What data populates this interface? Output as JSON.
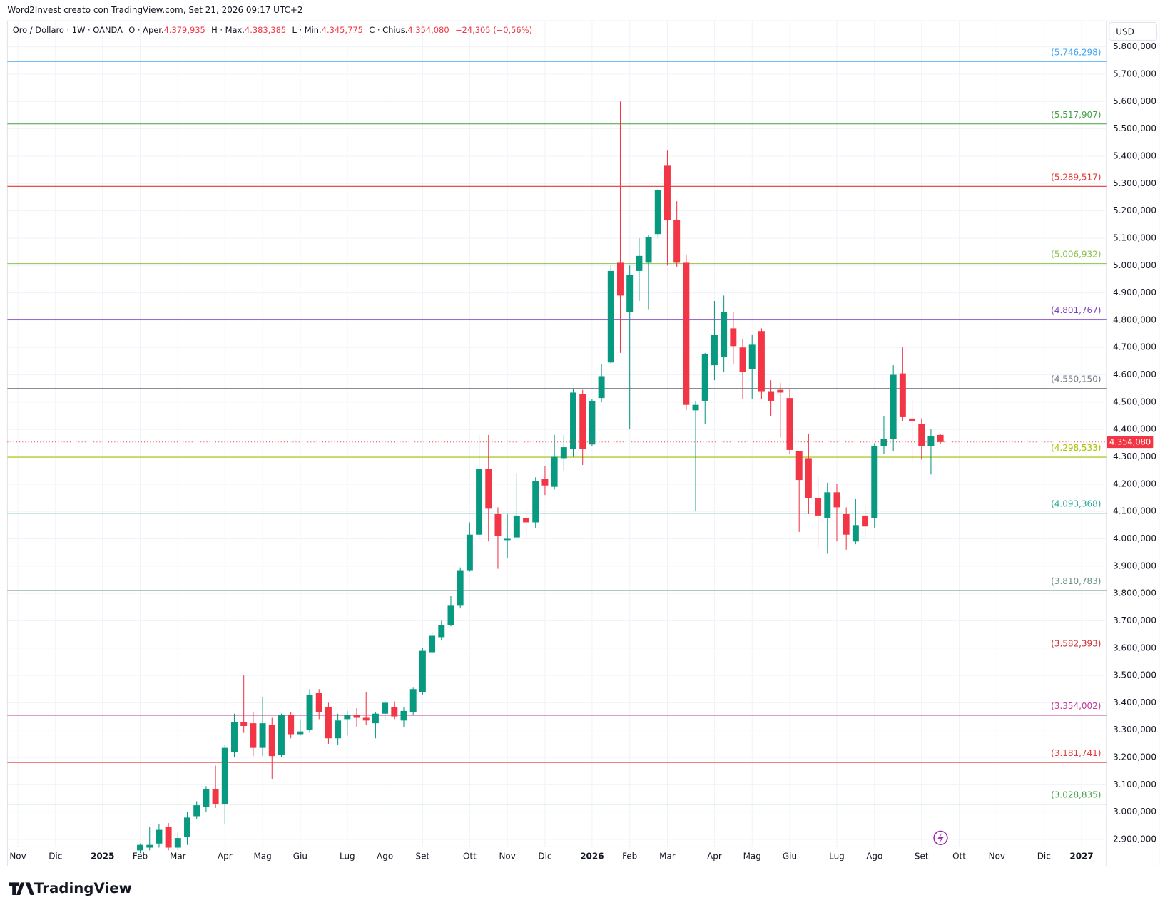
{
  "chart_data": {
    "type": "candlestick",
    "header": "Word2Invest creato con TradingView.com, Set 21, 2026 09:17 UTC+2",
    "symbol": "Oro / Dollaro · 1W · OANDA",
    "ohlc": [
      {
        "label": "O · Aper.",
        "value": "4.379,935"
      },
      {
        "label": "H · Max.",
        "value": "4.383,385"
      },
      {
        "label": "L · Min.",
        "value": "4.345,775"
      },
      {
        "label": "C · Chius.",
        "value": "4.354,080"
      }
    ],
    "change": "−24,305 (−0,56%)",
    "currency": "USD",
    "brand": "TradingView",
    "up_color": "#089981",
    "down_color": "#f23645",
    "categories": [
      "Nov",
      null,
      null,
      null,
      "Dic",
      null,
      null,
      null,
      null,
      "2025",
      null,
      null,
      null,
      "Feb",
      null,
      null,
      null,
      "Mar",
      null,
      null,
      null,
      null,
      "Apr",
      null,
      null,
      null,
      "Mag",
      null,
      null,
      null,
      "Giu",
      null,
      null,
      null,
      null,
      "Lug",
      null,
      null,
      null,
      "Ago",
      null,
      null,
      null,
      "Set",
      null,
      null,
      null,
      null,
      "Ott",
      null,
      null,
      null,
      "Nov",
      null,
      null,
      null,
      "Dic",
      null,
      null,
      null,
      null,
      "2026",
      null,
      null,
      null,
      "Feb",
      null,
      null,
      null,
      "Mar",
      null,
      null,
      null,
      null,
      "Apr",
      null,
      null,
      null,
      "Mag",
      null,
      null,
      null,
      "Giu",
      null,
      null,
      null,
      null,
      "Lug",
      null,
      null,
      null,
      "Ago",
      null,
      null,
      null,
      null,
      "Set",
      null,
      null,
      null,
      "Ott",
      null,
      null,
      null,
      "Nov",
      null,
      null,
      null,
      null,
      "Dic",
      null,
      null,
      null,
      "2027"
    ],
    "open": [
      null,
      null,
      null,
      null,
      null,
      null,
      null,
      null,
      null,
      null,
      null,
      null,
      null,
      2860,
      2870,
      2885,
      2945,
      2870,
      2910,
      2985,
      3020,
      3085,
      3030,
      3220,
      3330,
      3325,
      3235,
      3320,
      3210,
      3355,
      3285,
      3300,
      3435,
      3385,
      3270,
      3340,
      3355,
      3345,
      3325,
      3360,
      3385,
      3335,
      3365,
      3440,
      3585,
      3640,
      3685,
      3755,
      3885,
      4015,
      4255,
      4090,
      3995,
      4005,
      4075,
      4060,
      4220,
      4190,
      4295,
      4330,
      4530,
      4345,
      4515,
      4645,
      5010,
      4830,
      4980,
      5010,
      5115,
      5365,
      5165,
      5010,
      4470,
      4505,
      4635,
      4665,
      4770,
      4700,
      4620,
      4760,
      4540,
      4545,
      4515,
      4320,
      4295,
      4150,
      4075,
      4170,
      4090,
      3990,
      4085,
      4075,
      4340,
      4365,
      4605,
      4440,
      4420,
      4340,
      4379.935,
      null,
      null,
      null,
      null,
      null,
      null,
      null,
      null,
      null,
      null,
      null,
      null,
      null,
      null,
      null
    ],
    "high": [
      null,
      null,
      null,
      null,
      null,
      null,
      null,
      null,
      null,
      null,
      null,
      null,
      null,
      2885,
      2945,
      2955,
      2960,
      2925,
      3000,
      3040,
      3095,
      3170,
      3245,
      3360,
      3500,
      3365,
      3420,
      3345,
      3360,
      3365,
      3340,
      3450,
      3450,
      3400,
      3360,
      3370,
      3380,
      3440,
      3365,
      3410,
      3405,
      3385,
      3455,
      3600,
      3660,
      3700,
      3790,
      3895,
      4060,
      4380,
      4380,
      4115,
      4090,
      4240,
      4110,
      4225,
      4265,
      4380,
      4380,
      4550,
      4545,
      4510,
      4640,
      5000,
      5600,
      5000,
      5100,
      5110,
      5280,
      5420,
      5235,
      5040,
      4505,
      4680,
      4870,
      4890,
      4830,
      4730,
      4745,
      4770,
      4580,
      4570,
      4550,
      4320,
      4385,
      4225,
      4205,
      4200,
      4115,
      4145,
      4120,
      4350,
      4450,
      4635,
      4700,
      4510,
      4440,
      4400,
      4383.385,
      null,
      null,
      null,
      null,
      null,
      null,
      null,
      null,
      null,
      null,
      null,
      null,
      null,
      null,
      null
    ],
    "low": [
      null,
      null,
      null,
      null,
      null,
      null,
      null,
      null,
      null,
      null,
      null,
      null,
      null,
      2850,
      2860,
      2870,
      2860,
      2860,
      2880,
      2975,
      3000,
      3015,
      2955,
      3200,
      3290,
      3205,
      3205,
      3120,
      3200,
      3270,
      3280,
      3290,
      3340,
      3250,
      3245,
      3280,
      3310,
      3320,
      3270,
      3340,
      3340,
      3310,
      3355,
      3430,
      3580,
      3630,
      3680,
      3745,
      3880,
      4000,
      3990,
      3890,
      3930,
      4000,
      4000,
      4040,
      4160,
      4180,
      4250,
      4300,
      4270,
      4340,
      4500,
      4640,
      4680,
      4400,
      4870,
      4840,
      5100,
      5000,
      4995,
      4470,
      4100,
      4420,
      4580,
      4610,
      4640,
      4510,
      4510,
      4510,
      4450,
      4370,
      4310,
      4025,
      4090,
      3965,
      3945,
      3990,
      3960,
      3980,
      4000,
      4040,
      4310,
      4320,
      4430,
      4280,
      4290,
      4235,
      4345.775,
      null,
      null,
      null,
      null,
      null,
      null,
      null,
      null,
      null,
      null,
      null,
      null,
      null,
      null,
      null
    ],
    "close": [
      null,
      null,
      null,
      null,
      null,
      null,
      null,
      null,
      null,
      null,
      null,
      null,
      null,
      2880,
      2880,
      2935,
      2870,
      2905,
      2980,
      3025,
      3085,
      3030,
      3235,
      3330,
      3315,
      3235,
      3325,
      3205,
      3355,
      3285,
      3295,
      3430,
      3365,
      3270,
      3335,
      3355,
      3345,
      3335,
      3360,
      3400,
      3350,
      3370,
      3450,
      3590,
      3645,
      3685,
      3755,
      3885,
      4015,
      4255,
      4110,
      4010,
      4000,
      4085,
      4060,
      4210,
      4195,
      4300,
      4335,
      4535,
      4330,
      4505,
      4595,
      4980,
      4890,
      4965,
      5035,
      5105,
      5275,
      5165,
      5010,
      4490,
      4490,
      4675,
      4745,
      4830,
      4705,
      4610,
      4710,
      4540,
      4505,
      4535,
      4325,
      4215,
      4150,
      4085,
      4170,
      4115,
      4015,
      4050,
      4045,
      4340,
      4365,
      4600,
      4445,
      4430,
      4340,
      4375,
      4354.08,
      null,
      null,
      null,
      null,
      null,
      null,
      null,
      null,
      null,
      null,
      null,
      null,
      null,
      null,
      null
    ],
    "ylim": [
      2873,
      5895
    ],
    "yticks": [
      {
        "value": 2900,
        "label": "2.900,000"
      },
      {
        "value": 3000,
        "label": "3.000,000"
      },
      {
        "value": 3100,
        "label": "3.100,000"
      },
      {
        "value": 3200,
        "label": "3.200,000"
      },
      {
        "value": 3300,
        "label": "3.300,000"
      },
      {
        "value": 3400,
        "label": "3.400,000"
      },
      {
        "value": 3500,
        "label": "3.500,000"
      },
      {
        "value": 3600,
        "label": "3.600,000"
      },
      {
        "value": 3700,
        "label": "3.700,000"
      },
      {
        "value": 3800,
        "label": "3.800,000"
      },
      {
        "value": 3900,
        "label": "3.900,000"
      },
      {
        "value": 4000,
        "label": "4.000,000"
      },
      {
        "value": 4100,
        "label": "4.100,000"
      },
      {
        "value": 4200,
        "label": "4.200,000"
      },
      {
        "value": 4300,
        "label": "4.300,000"
      },
      {
        "value": 4400,
        "label": "4.400,000"
      },
      {
        "value": 4500,
        "label": "4.500,000"
      },
      {
        "value": 4600,
        "label": "4.600,000"
      },
      {
        "value": 4700,
        "label": "4.700,000"
      },
      {
        "value": 4800,
        "label": "4.800,000"
      },
      {
        "value": 4900,
        "label": "4.900,000"
      },
      {
        "value": 5000,
        "label": "5.000,000"
      },
      {
        "value": 5100,
        "label": "5.100,000"
      },
      {
        "value": 5200,
        "label": "5.200,000"
      },
      {
        "value": 5300,
        "label": "5.300,000"
      },
      {
        "value": 5400,
        "label": "5.400,000"
      },
      {
        "value": 5500,
        "label": "5.500,000"
      },
      {
        "value": 5600,
        "label": "5.600,000"
      },
      {
        "value": 5700,
        "label": "5.700,000"
      },
      {
        "value": 5800,
        "label": "5.800,000"
      }
    ],
    "grid": true,
    "levels": [
      {
        "value": 5746.298,
        "label": "(5.746,298)",
        "color": "#42a5f5"
      },
      {
        "value": 5517.907,
        "label": "(5.517,907)",
        "color": "#43a047"
      },
      {
        "value": 5289.517,
        "label": "(5.289,517)",
        "color": "#e53935"
      },
      {
        "value": 5006.932,
        "label": "(5.006,932)",
        "color": "#8bc34a"
      },
      {
        "value": 4801.767,
        "label": "(4.801,767)",
        "color": "#7e3ec1"
      },
      {
        "value": 4550.15,
        "label": "(4.550,150)",
        "color": "#787b86"
      },
      {
        "value": 4298.533,
        "label": "(4.298,533)",
        "color": "#a3c400"
      },
      {
        "value": 4093.368,
        "label": "(4.093,368)",
        "color": "#26a69a"
      },
      {
        "value": 3810.783,
        "label": "(3.810,783)",
        "color": "#6b8f86"
      },
      {
        "value": 3582.393,
        "label": "(3.582,393)",
        "color": "#d32f2f"
      },
      {
        "value": 3354.002,
        "label": "(3.354,002)",
        "color": "#c2389a"
      },
      {
        "value": 3181.741,
        "label": "(3.181,741)",
        "color": "#e53935"
      },
      {
        "value": 3028.835,
        "label": "(3.028,835)",
        "color": "#43a047"
      }
    ],
    "last_price": {
      "value": 4354.08,
      "label": "4.354,080"
    }
  }
}
